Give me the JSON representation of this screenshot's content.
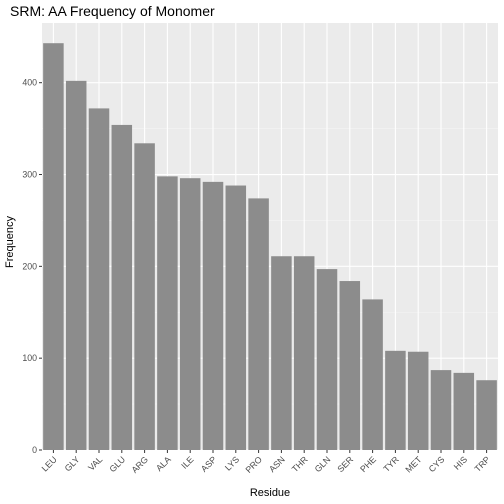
{
  "chart_data": {
    "type": "bar",
    "title": "SRM: AA Frequency of Monomer",
    "xlabel": "Residue",
    "ylabel": "Frequency",
    "categories": [
      "LEU",
      "GLY",
      "VAL",
      "GLU",
      "ARG",
      "ALA",
      "ILE",
      "ASP",
      "LYS",
      "PRO",
      "ASN",
      "THR",
      "GLN",
      "SER",
      "PHE",
      "TYR",
      "MET",
      "CYS",
      "HIS",
      "TRP"
    ],
    "values": [
      443,
      402,
      372,
      354,
      334,
      298,
      296,
      292,
      288,
      274,
      211,
      211,
      197,
      184,
      164,
      108,
      107,
      87,
      84,
      76
    ],
    "ylim": [
      0,
      465
    ],
    "yticks": [
      0,
      100,
      200,
      300,
      400
    ],
    "grid": true,
    "colors": {
      "panel": "#ebebeb",
      "bar": "#8c8c8c",
      "grid_major": "#ffffff",
      "grid_minor": "#f5f5f5"
    }
  }
}
